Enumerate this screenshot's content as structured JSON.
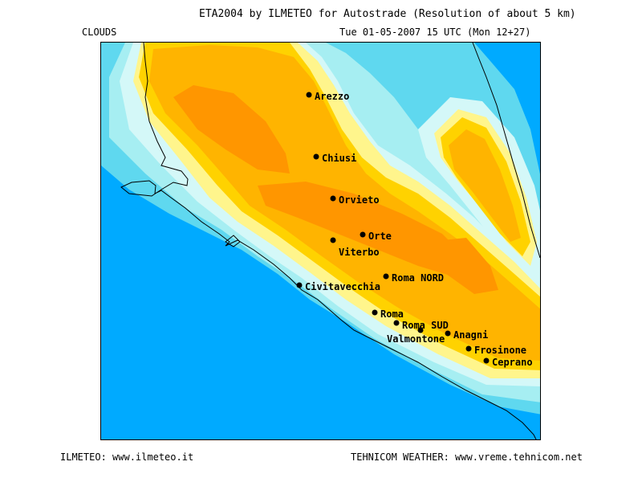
{
  "header": {
    "title": "ETA2004 by ILMETEO for Autostrade (Resolution of about 5 km)",
    "variable": "CLOUDS",
    "valid_time": "Tue 01-05-2007 15 UTC (Mon 12+27)"
  },
  "footer": {
    "left": "ILMETEO: www.ilmeteo.it",
    "right": "TEHNICOM WEATHER: www.vreme.tehnicom.net"
  },
  "colors": {
    "sea": "#00aaff",
    "low": "#5fd8ef",
    "light": "#a6eef2",
    "pale": "#d4f8f8",
    "yellow": "#fff58c",
    "gold": "#ffd200",
    "amber": "#ffb400",
    "orange": "#ff9600"
  },
  "cities": [
    {
      "name": "Arezzo"
    },
    {
      "name": "Chiusi"
    },
    {
      "name": "Orvieto"
    },
    {
      "name": "Orte"
    },
    {
      "name": "Viterbo"
    },
    {
      "name": "Roma NORD"
    },
    {
      "name": "Civitavecchia"
    },
    {
      "name": "Roma"
    },
    {
      "name": "Roma SUD"
    },
    {
      "name": "Valmontone"
    },
    {
      "name": "Anagni"
    },
    {
      "name": "Frosinone"
    },
    {
      "name": "Ceprano"
    }
  ]
}
